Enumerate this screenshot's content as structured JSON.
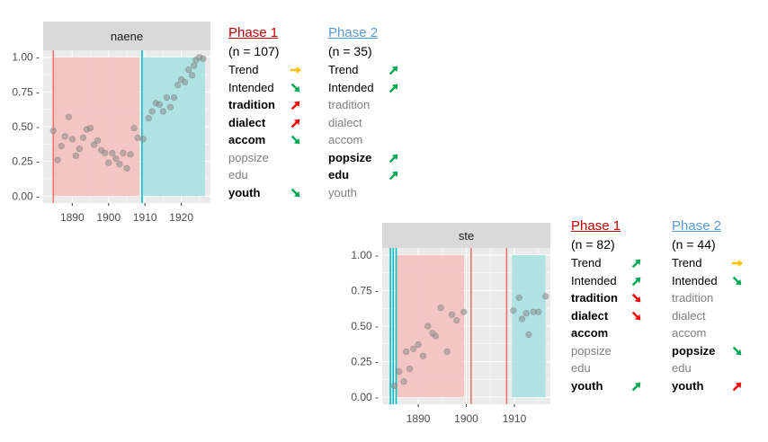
{
  "colors": {
    "phase1": "#c00000",
    "phase2": "#5b9bd5",
    "up": "#00a651",
    "down": "#ff0000",
    "right": "#ffc000",
    "red_band": "#f4c2c0",
    "cyan_band": "#a7e1e2",
    "red_line": "#f8766d",
    "cyan_line": "#00bfc4",
    "panel_bg": "#ebebeb",
    "strip_bg": "#d9d9d9"
  },
  "chart_data": [
    {
      "type": "scatter",
      "facet": "naene",
      "xlim": [
        1882,
        1928
      ],
      "ylim": [
        -0.05,
        1.05
      ],
      "xticks": [
        1890,
        1900,
        1910,
        1920
      ],
      "yticks": [
        "0.00 -",
        "0.25 -",
        "0.50 -",
        "0.75 -",
        "1.00 -"
      ],
      "ytick_values": [
        0,
        0.25,
        0.5,
        0.75,
        1.0
      ],
      "red_region": [
        1884.5,
        1908.5
      ],
      "cyan_region": [
        1909.5,
        1926.5
      ],
      "red_vlines": [
        1884.8
      ],
      "cyan_vlines": [
        1909.2
      ],
      "points": [
        {
          "x": 1884.8,
          "y": 0.47
        },
        {
          "x": 1886,
          "y": 0.26
        },
        {
          "x": 1887,
          "y": 0.36
        },
        {
          "x": 1888,
          "y": 0.43
        },
        {
          "x": 1889,
          "y": 0.57
        },
        {
          "x": 1890,
          "y": 0.41
        },
        {
          "x": 1891,
          "y": 0.29
        },
        {
          "x": 1892,
          "y": 0.34
        },
        {
          "x": 1893,
          "y": 0.42
        },
        {
          "x": 1894,
          "y": 0.48
        },
        {
          "x": 1895,
          "y": 0.49
        },
        {
          "x": 1896,
          "y": 0.37
        },
        {
          "x": 1897,
          "y": 0.4
        },
        {
          "x": 1898,
          "y": 0.33
        },
        {
          "x": 1899,
          "y": 0.31
        },
        {
          "x": 1900,
          "y": 0.24
        },
        {
          "x": 1901,
          "y": 0.31
        },
        {
          "x": 1902,
          "y": 0.27
        },
        {
          "x": 1903,
          "y": 0.23
        },
        {
          "x": 1904,
          "y": 0.31
        },
        {
          "x": 1905,
          "y": 0.2
        },
        {
          "x": 1906,
          "y": 0.3
        },
        {
          "x": 1907,
          "y": 0.49
        },
        {
          "x": 1908,
          "y": 0.42
        },
        {
          "x": 1909.5,
          "y": 0.41
        },
        {
          "x": 1911,
          "y": 0.56
        },
        {
          "x": 1912,
          "y": 0.61
        },
        {
          "x": 1913,
          "y": 0.67
        },
        {
          "x": 1914,
          "y": 0.66
        },
        {
          "x": 1915,
          "y": 0.61
        },
        {
          "x": 1916,
          "y": 0.71
        },
        {
          "x": 1917,
          "y": 0.64
        },
        {
          "x": 1918,
          "y": 0.71
        },
        {
          "x": 1919,
          "y": 0.8
        },
        {
          "x": 1920,
          "y": 0.84
        },
        {
          "x": 1921,
          "y": 0.82
        },
        {
          "x": 1922,
          "y": 0.91
        },
        {
          "x": 1923,
          "y": 0.87
        },
        {
          "x": 1924,
          "y": 0.98
        },
        {
          "x": 1925,
          "y": 1.0
        },
        {
          "x": 1926,
          "y": 0.99
        },
        {
          "x": 1923.5,
          "y": 0.94
        }
      ]
    },
    {
      "type": "scatter",
      "facet": "ste",
      "xlim": [
        1882.5,
        1917.5
      ],
      "ylim": [
        -0.05,
        1.05
      ],
      "xticks": [
        1890,
        1900,
        1910
      ],
      "yticks": [
        "0.00 -",
        "0.25 -",
        "0.50 -",
        "0.75 -",
        "1.00 -"
      ],
      "ytick_values": [
        0,
        0.25,
        0.5,
        0.75,
        1.0
      ],
      "red_region": [
        1885.5,
        1899.5
      ],
      "cyan_region": [
        1909.5,
        1916.5
      ],
      "red_vlines": [
        1901,
        1908.4
      ],
      "cyan_vlines": [
        1884.2,
        1884.8,
        1885.4
      ],
      "points": [
        {
          "x": 1885,
          "y": 0.08
        },
        {
          "x": 1886,
          "y": 0.18
        },
        {
          "x": 1887,
          "y": 0.11
        },
        {
          "x": 1887.5,
          "y": 0.32
        },
        {
          "x": 1888.2,
          "y": 0.2
        },
        {
          "x": 1889,
          "y": 0.34
        },
        {
          "x": 1890,
          "y": 0.37
        },
        {
          "x": 1891,
          "y": 0.29
        },
        {
          "x": 1892,
          "y": 0.5
        },
        {
          "x": 1893,
          "y": 0.45
        },
        {
          "x": 1893.6,
          "y": 0.43
        },
        {
          "x": 1894.7,
          "y": 0.63
        },
        {
          "x": 1896,
          "y": 0.32
        },
        {
          "x": 1897,
          "y": 0.58
        },
        {
          "x": 1898,
          "y": 0.54
        },
        {
          "x": 1899.5,
          "y": 0.6
        },
        {
          "x": 1909.8,
          "y": 0.61
        },
        {
          "x": 1911,
          "y": 0.7
        },
        {
          "x": 1911.6,
          "y": 0.55
        },
        {
          "x": 1912.5,
          "y": 0.59
        },
        {
          "x": 1913,
          "y": 0.44
        },
        {
          "x": 1914,
          "y": 0.6
        },
        {
          "x": 1915,
          "y": 0.6
        },
        {
          "x": 1916.5,
          "y": 0.71
        }
      ]
    }
  ],
  "panels": {
    "naene": {
      "phase1": {
        "header": "Phase 1",
        "n": "(n = 107)",
        "rows": [
          {
            "label": "Trend",
            "style": "plain",
            "arrow": "right"
          },
          {
            "label": "Intended",
            "style": "plain",
            "arrow": "down-green"
          },
          {
            "label": "tradition",
            "style": "bold",
            "arrow": "up-red"
          },
          {
            "label": "dialect",
            "style": "bold",
            "arrow": "up-red"
          },
          {
            "label": "accom",
            "style": "bold",
            "arrow": "down-green"
          },
          {
            "label": "popsize",
            "style": "grey",
            "arrow": ""
          },
          {
            "label": "edu",
            "style": "grey",
            "arrow": ""
          },
          {
            "label": "youth",
            "style": "bold",
            "arrow": "down-green"
          }
        ]
      },
      "phase2": {
        "header": "Phase 2",
        "n": "(n = 35)",
        "rows": [
          {
            "label": "Trend",
            "style": "plain",
            "arrow": "up-green"
          },
          {
            "label": "Intended",
            "style": "plain",
            "arrow": "up-green"
          },
          {
            "label": "tradition",
            "style": "grey",
            "arrow": ""
          },
          {
            "label": "dialect",
            "style": "grey",
            "arrow": ""
          },
          {
            "label": "accom",
            "style": "grey",
            "arrow": ""
          },
          {
            "label": "popsize",
            "style": "bold",
            "arrow": "up-green"
          },
          {
            "label": "edu",
            "style": "bold",
            "arrow": "up-green"
          },
          {
            "label": "youth",
            "style": "grey",
            "arrow": ""
          }
        ]
      }
    },
    "ste": {
      "phase1": {
        "header": "Phase 1",
        "n": "(n = 82)",
        "rows": [
          {
            "label": "Trend",
            "style": "plain",
            "arrow": "up-green"
          },
          {
            "label": "Intended",
            "style": "plain",
            "arrow": "up-green"
          },
          {
            "label": "tradition",
            "style": "bold",
            "arrow": "down-red"
          },
          {
            "label": "dialect",
            "style": "bold",
            "arrow": "down-red"
          },
          {
            "label": "accom",
            "style": "bold",
            "arrow": ""
          },
          {
            "label": "popsize",
            "style": "grey",
            "arrow": ""
          },
          {
            "label": "edu",
            "style": "grey",
            "arrow": ""
          },
          {
            "label": "youth",
            "style": "bold",
            "arrow": "up-green"
          }
        ]
      },
      "phase2": {
        "header": "Phase 2",
        "n": "(n = 44)",
        "rows": [
          {
            "label": "Trend",
            "style": "plain",
            "arrow": "right"
          },
          {
            "label": "Intended",
            "style": "plain",
            "arrow": "down-green"
          },
          {
            "label": "tradition",
            "style": "grey",
            "arrow": ""
          },
          {
            "label": "dialect",
            "style": "grey",
            "arrow": ""
          },
          {
            "label": "accom",
            "style": "grey",
            "arrow": ""
          },
          {
            "label": "popsize",
            "style": "bold",
            "arrow": "down-green"
          },
          {
            "label": "edu",
            "style": "grey",
            "arrow": ""
          },
          {
            "label": "youth",
            "style": "bold",
            "arrow": "up-red"
          }
        ]
      }
    }
  }
}
